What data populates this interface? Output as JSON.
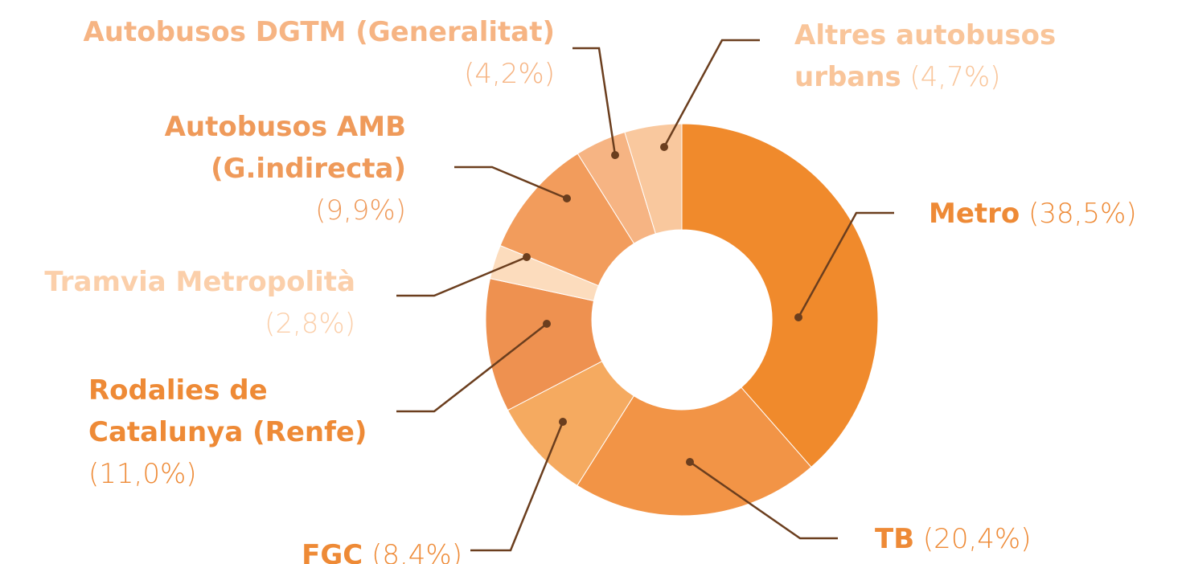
{
  "chart_data": {
    "type": "donut",
    "categories": [
      "Metro",
      "TB",
      "FGC",
      "Rodalies de Catalunya (Renfe)",
      "Tramvia Metropolità",
      "Autobusos AMB (G.indirecta)",
      "Autobusos DGTM (Generalitat)",
      "Altres autobusos urbans"
    ],
    "values": [
      38.5,
      20.4,
      8.4,
      11.0,
      2.8,
      9.9,
      4.2,
      4.7
    ],
    "value_labels": [
      "(38,5%)",
      "(20,4%)",
      "(8,4%)",
      "(11,0%)",
      "(2,8%)",
      "(9,9%)",
      "(4,2%)",
      "(4,7%)"
    ],
    "colors": [
      "#f08a2c",
      "#f29446",
      "#f5aa60",
      "#ee9150",
      "#fcdcbd",
      "#f29c5c",
      "#f6b483",
      "#f9c89e"
    ]
  }
}
